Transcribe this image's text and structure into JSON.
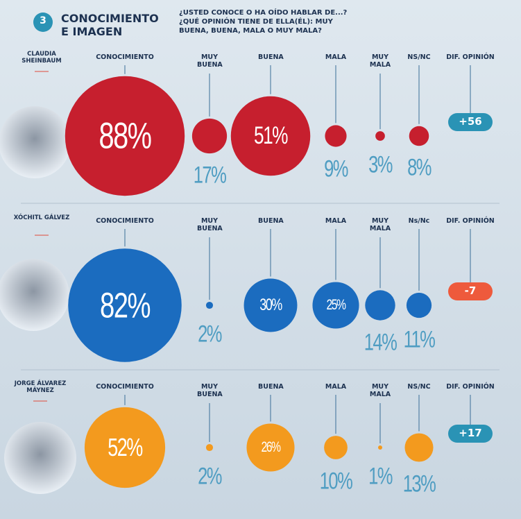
{
  "header": {
    "number": "3",
    "title": [
      "CONOCIMIENTO",
      "E IMAGEN"
    ],
    "question": [
      "¿USTED CONOCE O HA OÍDO HABLAR DE...?",
      "¿QUÉ OPINIÓN TIENE DE ELLA(ÉL): MUY",
      "BUENA, BUENA, MALA O MUY MALA?"
    ]
  },
  "chart_data": [
    {
      "type": "bubble",
      "name": "CLAUDIA SHEINBAUM",
      "color": "#c61f2e",
      "categories": [
        "CONOCIMIENTO",
        "MUY BUENA",
        "BUENA",
        "MALA",
        "MUY MALA",
        "NS/NC"
      ],
      "values": [
        88,
        17,
        51,
        9,
        3,
        8
      ],
      "value_labels": [
        "88%",
        "17%",
        "51%",
        "9%",
        "3%",
        "8%"
      ],
      "difference_title": "DIF. OPINIÓN",
      "difference": {
        "value": 56,
        "label": "+56"
      },
      "difference_color": "#2a93b5"
    },
    {
      "type": "bubble",
      "name": "XÓCHITL GÁLVEZ",
      "color": "#1b6cbf",
      "categories": [
        "CONOCIMIENTO",
        "MUY BUENA",
        "BUENA",
        "MALA",
        "MUY MALA",
        "Ns/Nc"
      ],
      "values": [
        82,
        2,
        30,
        25,
        14,
        11
      ],
      "value_labels": [
        "82%",
        "2%",
        "30%",
        "25%",
        "14%",
        "11%"
      ],
      "difference_title": "DIF. OPINIÓN",
      "difference": -7,
      "difference_color": "#ee5a3c"
    },
    {
      "type": "bubble",
      "name": "JORGE ÁLVAREZ MÁYNEZ",
      "color": "#f39a1e",
      "categories": [
        "CONOCIMIENTO",
        "MUY BUENA",
        "BUENA",
        "MALA",
        "MUY MALA",
        "NS/NC"
      ],
      "values": [
        52,
        2,
        26,
        10,
        1,
        13
      ],
      "value_labels": [
        "52%",
        "2%",
        "26%",
        "10%",
        "1%",
        "13%"
      ],
      "difference_title": "DIF. OPINIÓN",
      "difference": {
        "value": 17,
        "label": "+17"
      },
      "difference_color": "#2a93b5"
    }
  ]
}
